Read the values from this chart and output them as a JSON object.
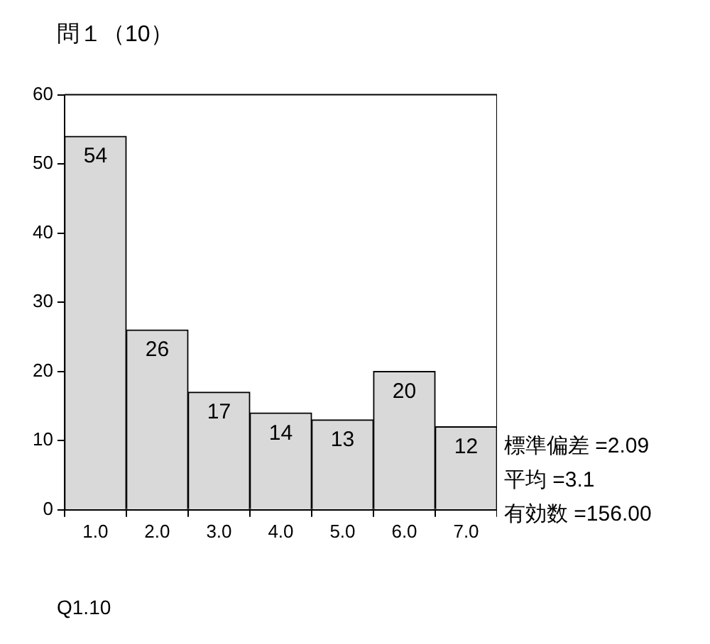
{
  "chart_data": {
    "type": "bar",
    "title": "問１（10）",
    "xlabel": "Q1.10",
    "categories": [
      "1.0",
      "2.0",
      "3.0",
      "4.0",
      "5.0",
      "6.0",
      "7.0"
    ],
    "values": [
      54,
      26,
      17,
      14,
      13,
      20,
      12
    ],
    "color": "#d9d9d9",
    "ylim": [
      0,
      60
    ],
    "yticks": [
      0,
      10,
      20,
      30,
      40,
      50,
      60
    ],
    "grid": false,
    "data_labels": true,
    "legend": false,
    "annotations": [
      "標準偏差 =2.09",
      "平均 =3.1",
      "有効数 =156.00"
    ]
  }
}
